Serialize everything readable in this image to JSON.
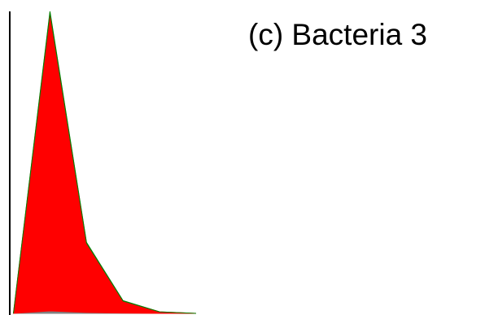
{
  "chart_data": {
    "type": "area",
    "title": "(c) Bacteria 3",
    "xlabel": "",
    "ylabel": "",
    "x": [
      0,
      1,
      2,
      3,
      4,
      5
    ],
    "xlim": [
      -0.1,
      5.2
    ],
    "ylim": [
      0,
      100
    ],
    "stacked": true,
    "grid": false,
    "legend": "none",
    "series": [
      {
        "values": [
          0,
          0.8,
          0.3,
          0.1,
          0,
          0
        ],
        "color": "#808080"
      },
      {
        "values": [
          0,
          98.7,
          23.0,
          4.0,
          0.5,
          0
        ],
        "color": "#ff0000"
      },
      {
        "values": [
          0,
          0.5,
          0.2,
          0.1,
          0,
          0
        ],
        "color": "#008000"
      }
    ],
    "axis": {
      "left_spine": true,
      "bottom_spine": false,
      "ticks": false
    }
  }
}
